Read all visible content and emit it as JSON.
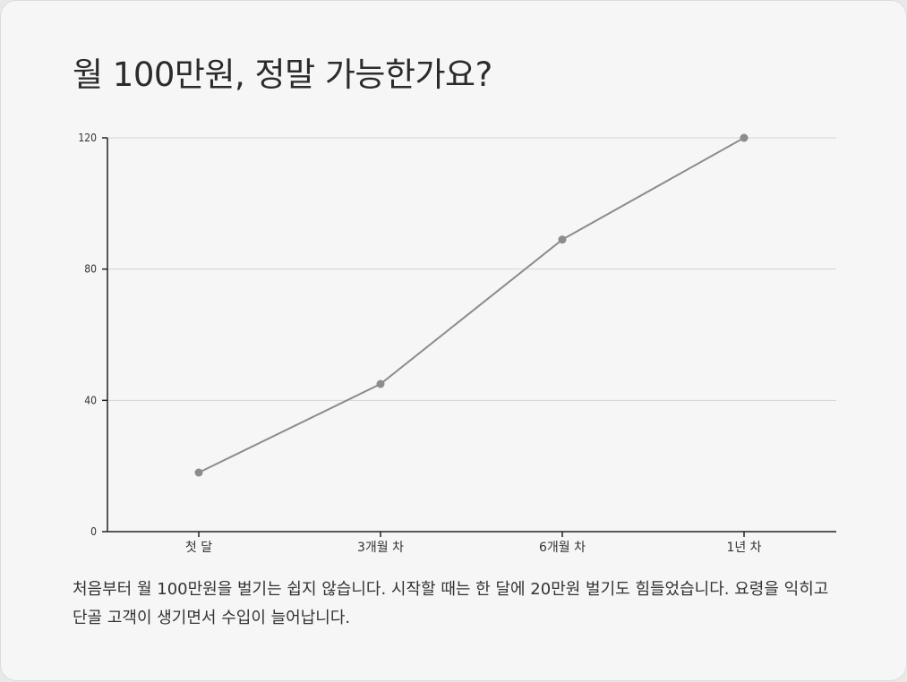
{
  "title": "월 100만원, 정말 가능한가요?",
  "description": "처음부터 월 100만원을 벌기는 쉽지 않습니다. 시작할 때는 한 달에 20만원 벌기도 힘들었습니다. 요령을 익히고 단골 고객이 생기면서 수입이 늘어납니다.",
  "colors": {
    "background": "#f6f6f6",
    "line": "#8c8c8c",
    "grid": "#d4d4d4",
    "axis": "#222222"
  },
  "chart_data": {
    "type": "line",
    "categories": [
      "첫 달",
      "3개월 차",
      "6개월 차",
      "1년 차"
    ],
    "series": [
      {
        "values": [
          18,
          45,
          89,
          120
        ]
      }
    ],
    "yticks": [
      "0",
      "40",
      "80",
      "120"
    ],
    "ylim": [
      0,
      120
    ],
    "grid": true
  }
}
